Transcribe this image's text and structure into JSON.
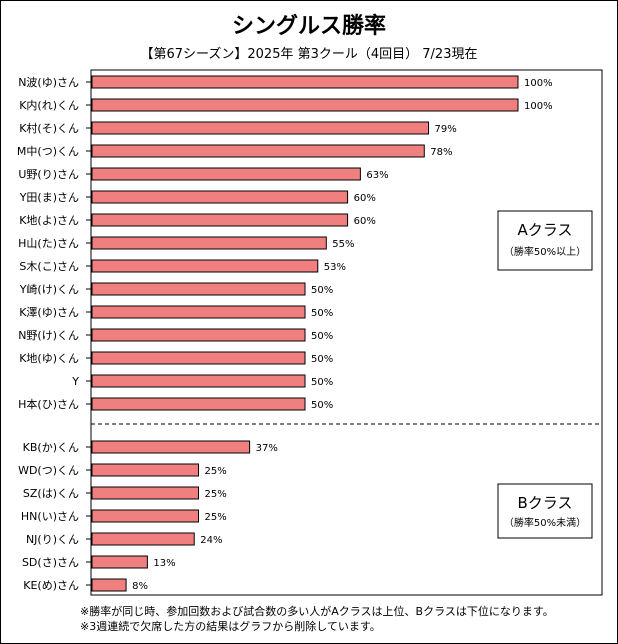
{
  "chart_data": {
    "type": "bar",
    "orientation": "horizontal",
    "title": "シングルス勝率",
    "subtitle": "【第67シーズン】2025年 第3クール（4回目） 7/23現在",
    "xlim": [
      0,
      100
    ],
    "value_suffix": "%",
    "bar_color": "#f08080",
    "groups": [
      {
        "label": "Aクラス",
        "sublabel": "（勝率50%以上）",
        "categories": [
          "N波(ゆ)さん",
          "K内(れ)くん",
          "K村(そ)くん",
          "M中(つ)くん",
          "U野(り)さん",
          "Y田(ま)さん",
          "K地(よ)さん",
          "H山(た)さん",
          "S木(こ)さん",
          "Y崎(け)くん",
          "K澤(ゆ)さん",
          "N野(け)くん",
          "K地(ゆ)くん",
          "Y",
          "H本(ひ)さん"
        ],
        "values": [
          100,
          100,
          79,
          78,
          63,
          60,
          60,
          55,
          53,
          50,
          50,
          50,
          50,
          50,
          50
        ]
      },
      {
        "label": "Bクラス",
        "sublabel": "（勝率50%未満）",
        "categories": [
          "KB(か)くん",
          "WD(つ)くん",
          "SZ(は)くん",
          "HN(い)さん",
          "NJ(り)くん",
          "SD(さ)さん",
          "KE(め)さん"
        ],
        "values": [
          37,
          25,
          25,
          25,
          24,
          13,
          8
        ]
      }
    ]
  },
  "notes": [
    "※勝率が同じ時、参加回数および試合数の多い人がAクラスは上位、Bクラスは下位になります。",
    "※3週連続で欠席した方の結果はグラフから削除しています。"
  ]
}
